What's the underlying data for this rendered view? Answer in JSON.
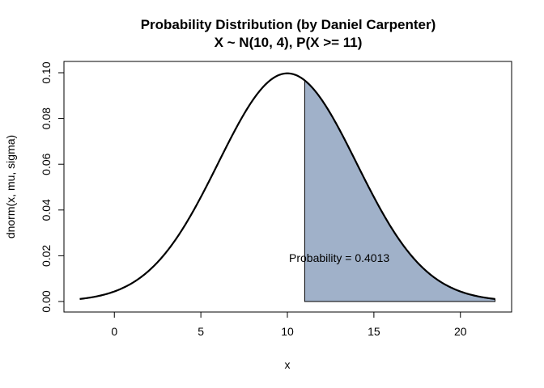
{
  "chart_data": {
    "type": "line",
    "title": "Probability Distribution (by Daniel Carpenter)",
    "subtitle": "X ~ N(10, 4), P(X >= 11)",
    "xlabel": "x",
    "ylabel": "dnorm(x, mu, sigma)",
    "distribution": {
      "mu": 10,
      "sigma": 4
    },
    "xlim": [
      -2,
      22
    ],
    "ylim": [
      0,
      0.1
    ],
    "x_ticks": [
      0,
      5,
      10,
      15,
      20
    ],
    "x_tick_labels": [
      "0",
      "5",
      "10",
      "15",
      "20"
    ],
    "y_ticks": [
      0,
      0.02,
      0.04,
      0.06,
      0.08,
      0.1
    ],
    "y_tick_labels": [
      "0.00",
      "0.02",
      "0.04",
      "0.06",
      "0.08",
      "0.10"
    ],
    "series": [
      {
        "x": [
          -2,
          -1,
          0,
          1,
          2,
          3,
          4,
          5,
          6,
          7,
          8,
          9,
          10,
          11,
          12,
          13,
          14,
          15,
          16,
          17,
          18,
          19,
          20,
          21,
          22
        ],
        "y": [
          0.0011,
          0.0023,
          0.0044,
          0.0079,
          0.0135,
          0.0217,
          0.0324,
          0.0457,
          0.0605,
          0.0753,
          0.088,
          0.0967,
          0.0997,
          0.0967,
          0.088,
          0.0753,
          0.0605,
          0.0457,
          0.0324,
          0.0217,
          0.0135,
          0.0079,
          0.0044,
          0.0023,
          0.0011
        ]
      }
    ],
    "shaded_region": {
      "from": 11,
      "to": 22,
      "color": "#a0b1c9"
    },
    "annotation": {
      "text": "Probability = 0.4013",
      "x": 13,
      "y": 0.019
    },
    "grid": false,
    "colors": {
      "line": "#000000",
      "fill": "#a0b1c9",
      "background": "#ffffff"
    }
  }
}
